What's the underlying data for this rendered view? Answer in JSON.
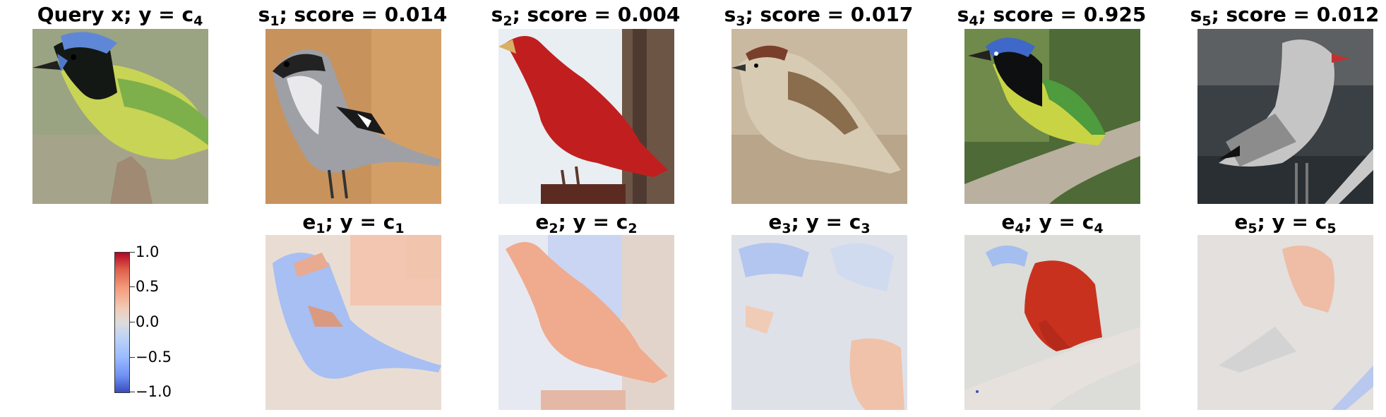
{
  "top_row": [
    {
      "title_pre": "Query x; y = c",
      "title_sub": "4",
      "title_post": ""
    },
    {
      "title_pre": "s",
      "title_sub": "1",
      "title_post": "; score = 0.014"
    },
    {
      "title_pre": "s",
      "title_sub": "2",
      "title_post": "; score = 0.004"
    },
    {
      "title_pre": "s",
      "title_sub": "3",
      "title_post": "; score = 0.017"
    },
    {
      "title_pre": "s",
      "title_sub": "4",
      "title_post": "; score = 0.925"
    },
    {
      "title_pre": "s",
      "title_sub": "5",
      "title_post": "; score = 0.012"
    }
  ],
  "bottom_row": [
    {
      "title_pre": "e",
      "title_sub": "1",
      "title_mid": "; y = c",
      "title_sub2": "1"
    },
    {
      "title_pre": "e",
      "title_sub": "2",
      "title_mid": "; y = c",
      "title_sub2": "2"
    },
    {
      "title_pre": "e",
      "title_sub": "3",
      "title_mid": "; y = c",
      "title_sub2": "3"
    },
    {
      "title_pre": "e",
      "title_sub": "4",
      "title_mid": "; y = c",
      "title_sub2": "4"
    },
    {
      "title_pre": "e",
      "title_sub": "5",
      "title_mid": "; y = c",
      "title_sub2": "5"
    }
  ],
  "colorbar": {
    "ticks": [
      "1.0",
      "0.5",
      "0.0",
      "−0.5",
      "−1.0"
    ],
    "colors": {
      "max": "#b40426",
      "mid": "#dddcdc",
      "min": "#3b4cc0"
    }
  }
}
